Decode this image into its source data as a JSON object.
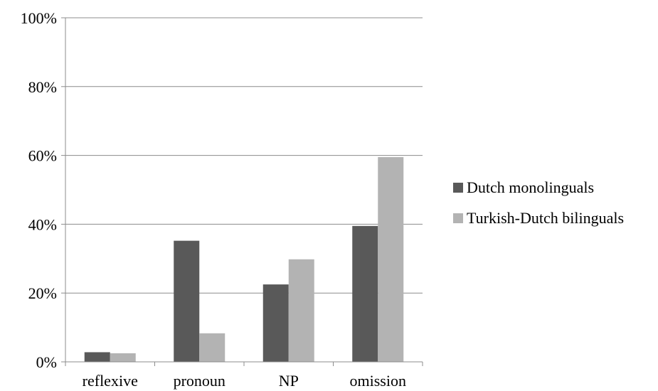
{
  "chart_data": {
    "type": "bar",
    "categories": [
      "reflexive",
      "pronoun",
      "NP",
      "omission"
    ],
    "series": [
      {
        "name": "Dutch monolinguals",
        "values": [
          2.8,
          35.2,
          22.5,
          39.5
        ],
        "color": "#595959"
      },
      {
        "name": "Turkish-Dutch bilinguals",
        "values": [
          2.5,
          8.3,
          29.8,
          59.5
        ],
        "color": "#b3b3b3"
      }
    ],
    "ylim": [
      0,
      100
    ],
    "yticks": [
      0,
      20,
      40,
      60,
      80,
      100
    ],
    "ytick_labels": [
      "0%",
      "20%",
      "40%",
      "60%",
      "80%",
      "100%"
    ],
    "grid": true,
    "legend_position": "right",
    "title": "",
    "xlabel": "",
    "ylabel": ""
  }
}
